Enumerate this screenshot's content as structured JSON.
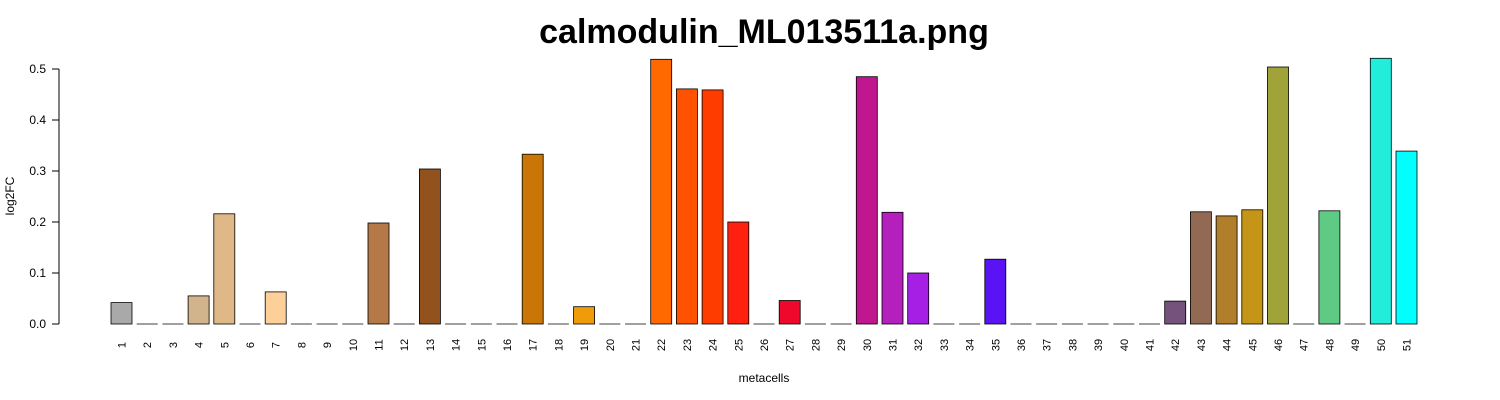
{
  "chart_data": {
    "type": "bar",
    "title": "calmodulin_ML013511a.png",
    "xlabel": "metacells",
    "ylabel": "log2FC",
    "ylim": [
      0,
      0.5
    ],
    "yticks": [
      "0.0",
      "0.1",
      "0.2",
      "0.3",
      "0.4",
      "0.5"
    ],
    "categories": [
      "1",
      "2",
      "3",
      "4",
      "5",
      "6",
      "7",
      "8",
      "9",
      "10",
      "11",
      "12",
      "13",
      "14",
      "15",
      "16",
      "17",
      "18",
      "19",
      "20",
      "21",
      "22",
      "23",
      "24",
      "25",
      "26",
      "27",
      "28",
      "29",
      "30",
      "31",
      "32",
      "33",
      "34",
      "35",
      "36",
      "37",
      "38",
      "39",
      "40",
      "41",
      "42",
      "43",
      "44",
      "45",
      "46",
      "47",
      "48",
      "49",
      "50",
      "51"
    ],
    "values": [
      0.042,
      0,
      0,
      0.055,
      0.216,
      0,
      0.063,
      0,
      0,
      0,
      0.198,
      0,
      0.304,
      0,
      0,
      0,
      0.333,
      0,
      0.034,
      0,
      0,
      0.519,
      0.461,
      0.459,
      0.2,
      0,
      0.046,
      0,
      0,
      0.485,
      0.219,
      0.1,
      0,
      0,
      0.127,
      0,
      0,
      0,
      0,
      0,
      0,
      0.045,
      0.22,
      0.212,
      0.224,
      0.504,
      0,
      0.222,
      0,
      0.521,
      0.339
    ],
    "colors": [
      "#a9a9a9",
      "#c8c8c8",
      "#c8c8c8",
      "#d2b48c",
      "#deb887",
      "#c8c8c8",
      "#fdd09a",
      "#c8c8c8",
      "#c8c8c8",
      "#c8c8c8",
      "#b47946",
      "#c8c8c8",
      "#92521d",
      "#c8c8c8",
      "#c8c8c8",
      "#c8c8c8",
      "#c97606",
      "#c8c8c8",
      "#f09c09",
      "#c8c8c8",
      "#c8c8c8",
      "#ff6900",
      "#ff5200",
      "#ff3c00",
      "#ff200f",
      "#c8c8c8",
      "#ef082b",
      "#c8c8c8",
      "#c8c8c8",
      "#c0168f",
      "#b41fbe",
      "#a61fe5",
      "#c8c8c8",
      "#c8c8c8",
      "#5a13f5",
      "#c8c8c8",
      "#c8c8c8",
      "#c8c8c8",
      "#c8c8c8",
      "#c8c8c8",
      "#c8c8c8",
      "#75527c",
      "#926a53",
      "#b17e2c",
      "#c59518",
      "#a0a33a",
      "#c8c8c8",
      "#5fca84",
      "#c8c8c8",
      "#22ecdc",
      "#00ffff"
    ]
  }
}
